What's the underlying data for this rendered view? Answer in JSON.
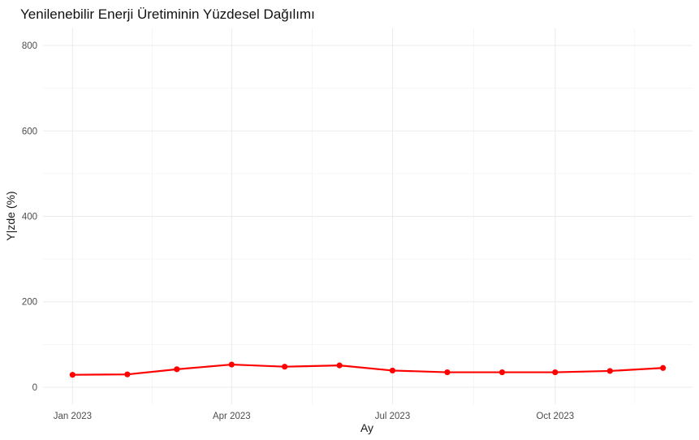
{
  "chart_data": {
    "type": "line",
    "title": "Yenilenebilir Enerji Üretiminin Yüzdesel Dağılımı",
    "xlabel": "Ay",
    "ylabel": "Y|zde (%)",
    "ylim": [
      0,
      800
    ],
    "y_ticks": [
      0,
      200,
      400,
      600,
      800
    ],
    "y_tick_labels": [
      "0",
      "200",
      "400",
      "600",
      "800"
    ],
    "x_ticks": [
      "2023-01-01",
      "2023-04-01",
      "2023-07-01",
      "2023-10-01"
    ],
    "x_tick_labels": [
      "Jan 2023",
      "Apr 2023",
      "Jul 2023",
      "Oct 2023"
    ],
    "grid": true,
    "series": [
      {
        "color": "#ff0000",
        "x": [
          "2023-01-01",
          "2023-02-01",
          "2023-03-01",
          "2023-04-01",
          "2023-05-01",
          "2023-06-01",
          "2023-07-01",
          "2023-08-01",
          "2023-09-01",
          "2023-10-01",
          "2023-11-01",
          "2023-12-01"
        ],
        "values": [
          29,
          30,
          42,
          53,
          48,
          51,
          39,
          35,
          35,
          35,
          38,
          45
        ]
      }
    ]
  }
}
